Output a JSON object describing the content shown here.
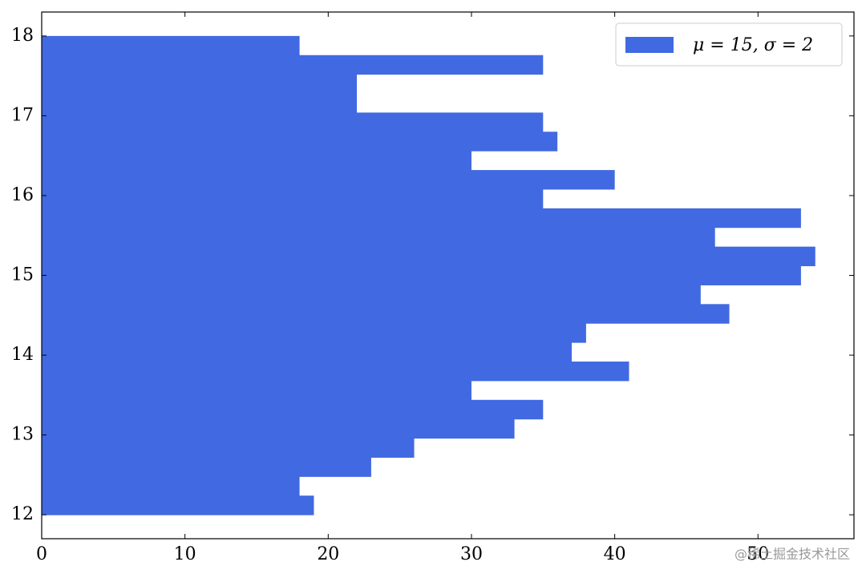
{
  "chart_data": {
    "type": "histogram",
    "orientation": "horizontal",
    "bins": [
      12,
      12.24,
      12.48,
      12.72,
      12.96,
      13.2,
      13.44,
      13.68,
      13.92,
      14.16,
      14.4,
      14.64,
      14.88,
      15.12,
      15.36,
      15.6,
      15.84,
      16.08,
      16.32,
      16.56,
      16.8,
      17.04,
      17.28,
      17.52,
      17.76,
      18
    ],
    "values": [
      19,
      18,
      23,
      26,
      33,
      35,
      30,
      41,
      37,
      38,
      48,
      46,
      53,
      54,
      47,
      53,
      35,
      40,
      30,
      36,
      35,
      22,
      22,
      35,
      18
    ],
    "series_name": "μ = 15, σ = 2",
    "color": "#4169e1",
    "xlim": [
      0,
      56.7
    ],
    "xticks": [
      0,
      10,
      20,
      30,
      40,
      50
    ],
    "ylim": [
      11.7,
      18.3
    ],
    "yticks": [
      12,
      13,
      14,
      15,
      16,
      17,
      18
    ],
    "legend": "upper right",
    "grid": false,
    "watermark": "@稀土掘金技术社区"
  }
}
